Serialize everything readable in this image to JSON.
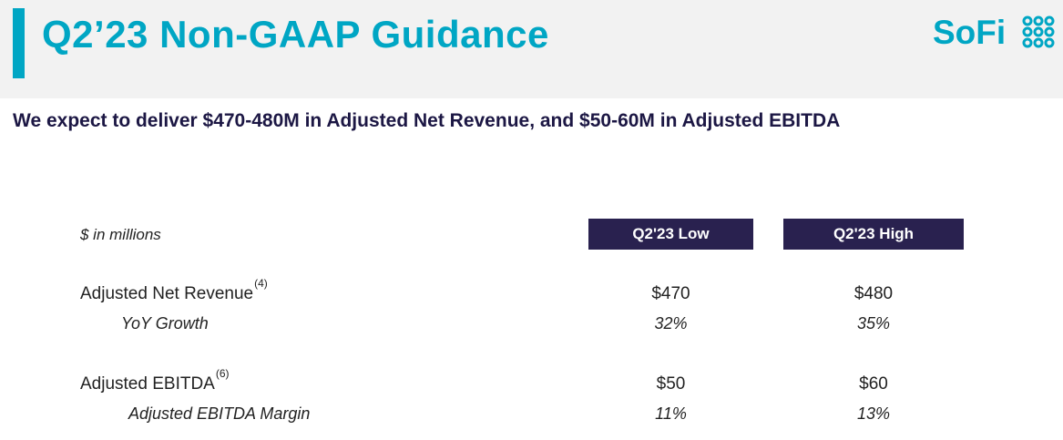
{
  "header": {
    "title": "Q2’23 Non-GAAP Guidance",
    "logo_text": "SoFi",
    "accent_color": "#00a6c4"
  },
  "subtitle": "We expect to deliver $470-480M in Adjusted Net Revenue, and $50-60M in Adjusted EBITDA",
  "table": {
    "units_label": "$ in millions",
    "columns": [
      "Q2'23 Low",
      "Q2'23 High"
    ],
    "header_color": "#29214f",
    "rows": [
      {
        "label": "Adjusted Net Revenue",
        "footnote": "(4)",
        "low": "$470",
        "high": "$480",
        "style": "main"
      },
      {
        "label": "YoY Growth",
        "footnote": "",
        "low": "32%",
        "high": "35%",
        "style": "sub"
      },
      {
        "label": "Adjusted EBITDA",
        "footnote": "(6)",
        "low": "$50",
        "high": "$60",
        "style": "main"
      },
      {
        "label": "Adjusted EBITDA Margin",
        "footnote": "",
        "low": "11%",
        "high": "13%",
        "style": "sub"
      }
    ]
  }
}
